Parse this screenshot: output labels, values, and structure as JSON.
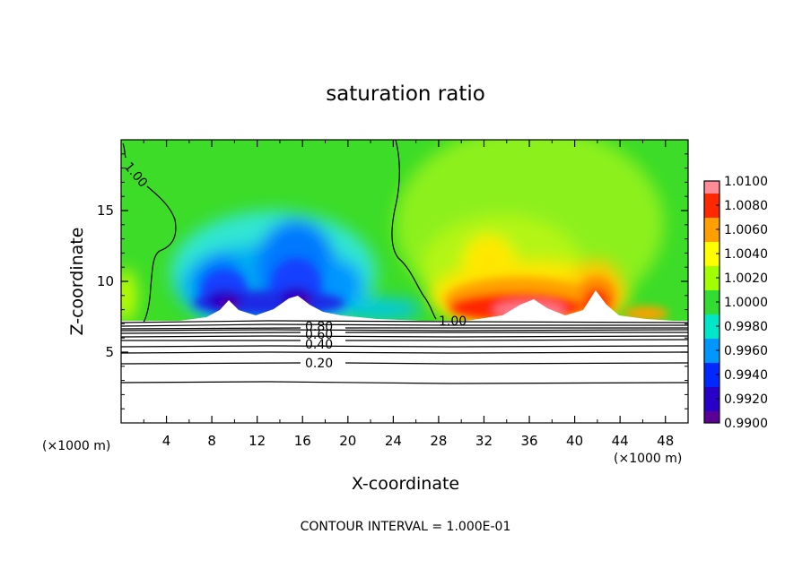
{
  "chart_data": {
    "type": "heatmap",
    "title": "saturation ratio",
    "xlabel": "X-coordinate",
    "ylabel": "Z-coordinate",
    "x_unit": "(×1000 m)",
    "z_unit": "(×1000 m)",
    "xlim": [
      0,
      50
    ],
    "ylim": [
      0,
      20
    ],
    "x_ticks": [
      "4",
      "8",
      "12",
      "16",
      "20",
      "24",
      "28",
      "32",
      "36",
      "40",
      "44",
      "48"
    ],
    "y_ticks": [
      "5",
      "10",
      "15"
    ],
    "footnote": "CONTOUR INTERVAL = 1.000E-01",
    "colorbar": {
      "levels": [
        "0.9900",
        "0.9920",
        "0.9940",
        "0.9960",
        "0.9980",
        "1.0000",
        "1.0020",
        "1.0040",
        "1.0060",
        "1.0080",
        "1.0100"
      ],
      "colors": [
        "#5a0096",
        "#2800c8",
        "#0028ff",
        "#0096ff",
        "#00e6c8",
        "#32dc32",
        "#a0ff00",
        "#ffff00",
        "#ffa000",
        "#ff2800",
        "#ff8c96"
      ]
    },
    "contour_labels": [
      "1.00",
      "1.00",
      "0.80",
      "0.60",
      "0.40",
      "0.20"
    ],
    "contours": [
      {
        "level": 1.0,
        "note": "left/upper boundary",
        "x": [
          0.3,
          2.0,
          3.0,
          4.5,
          4.7,
          3.0,
          3.0,
          2.2
        ],
        "y": [
          19.3,
          18.0,
          17.2,
          16.0,
          12.5,
          12.0,
          10.0,
          7.1
        ]
      },
      {
        "level": 1.0,
        "note": "central boundary",
        "x": [
          24.2,
          24.6,
          23.8,
          24.2,
          25.5,
          26.2,
          27.6,
          28.0
        ],
        "y": [
          19.8,
          18.0,
          16.0,
          13.5,
          12.0,
          11.0,
          10.0,
          7.3
        ]
      },
      {
        "level": 0.8,
        "x": [
          0,
          50
        ],
        "y": [
          7.0,
          7.0
        ]
      },
      {
        "level": 0.6,
        "x": [
          0,
          50
        ],
        "y": [
          6.7,
          6.7
        ]
      },
      {
        "level": 0.4,
        "x": [
          0,
          50
        ],
        "y": [
          6.3,
          6.3
        ]
      },
      {
        "level": 0.2,
        "x": [
          0,
          50
        ],
        "y": [
          4.2,
          4.2
        ]
      }
    ]
  }
}
